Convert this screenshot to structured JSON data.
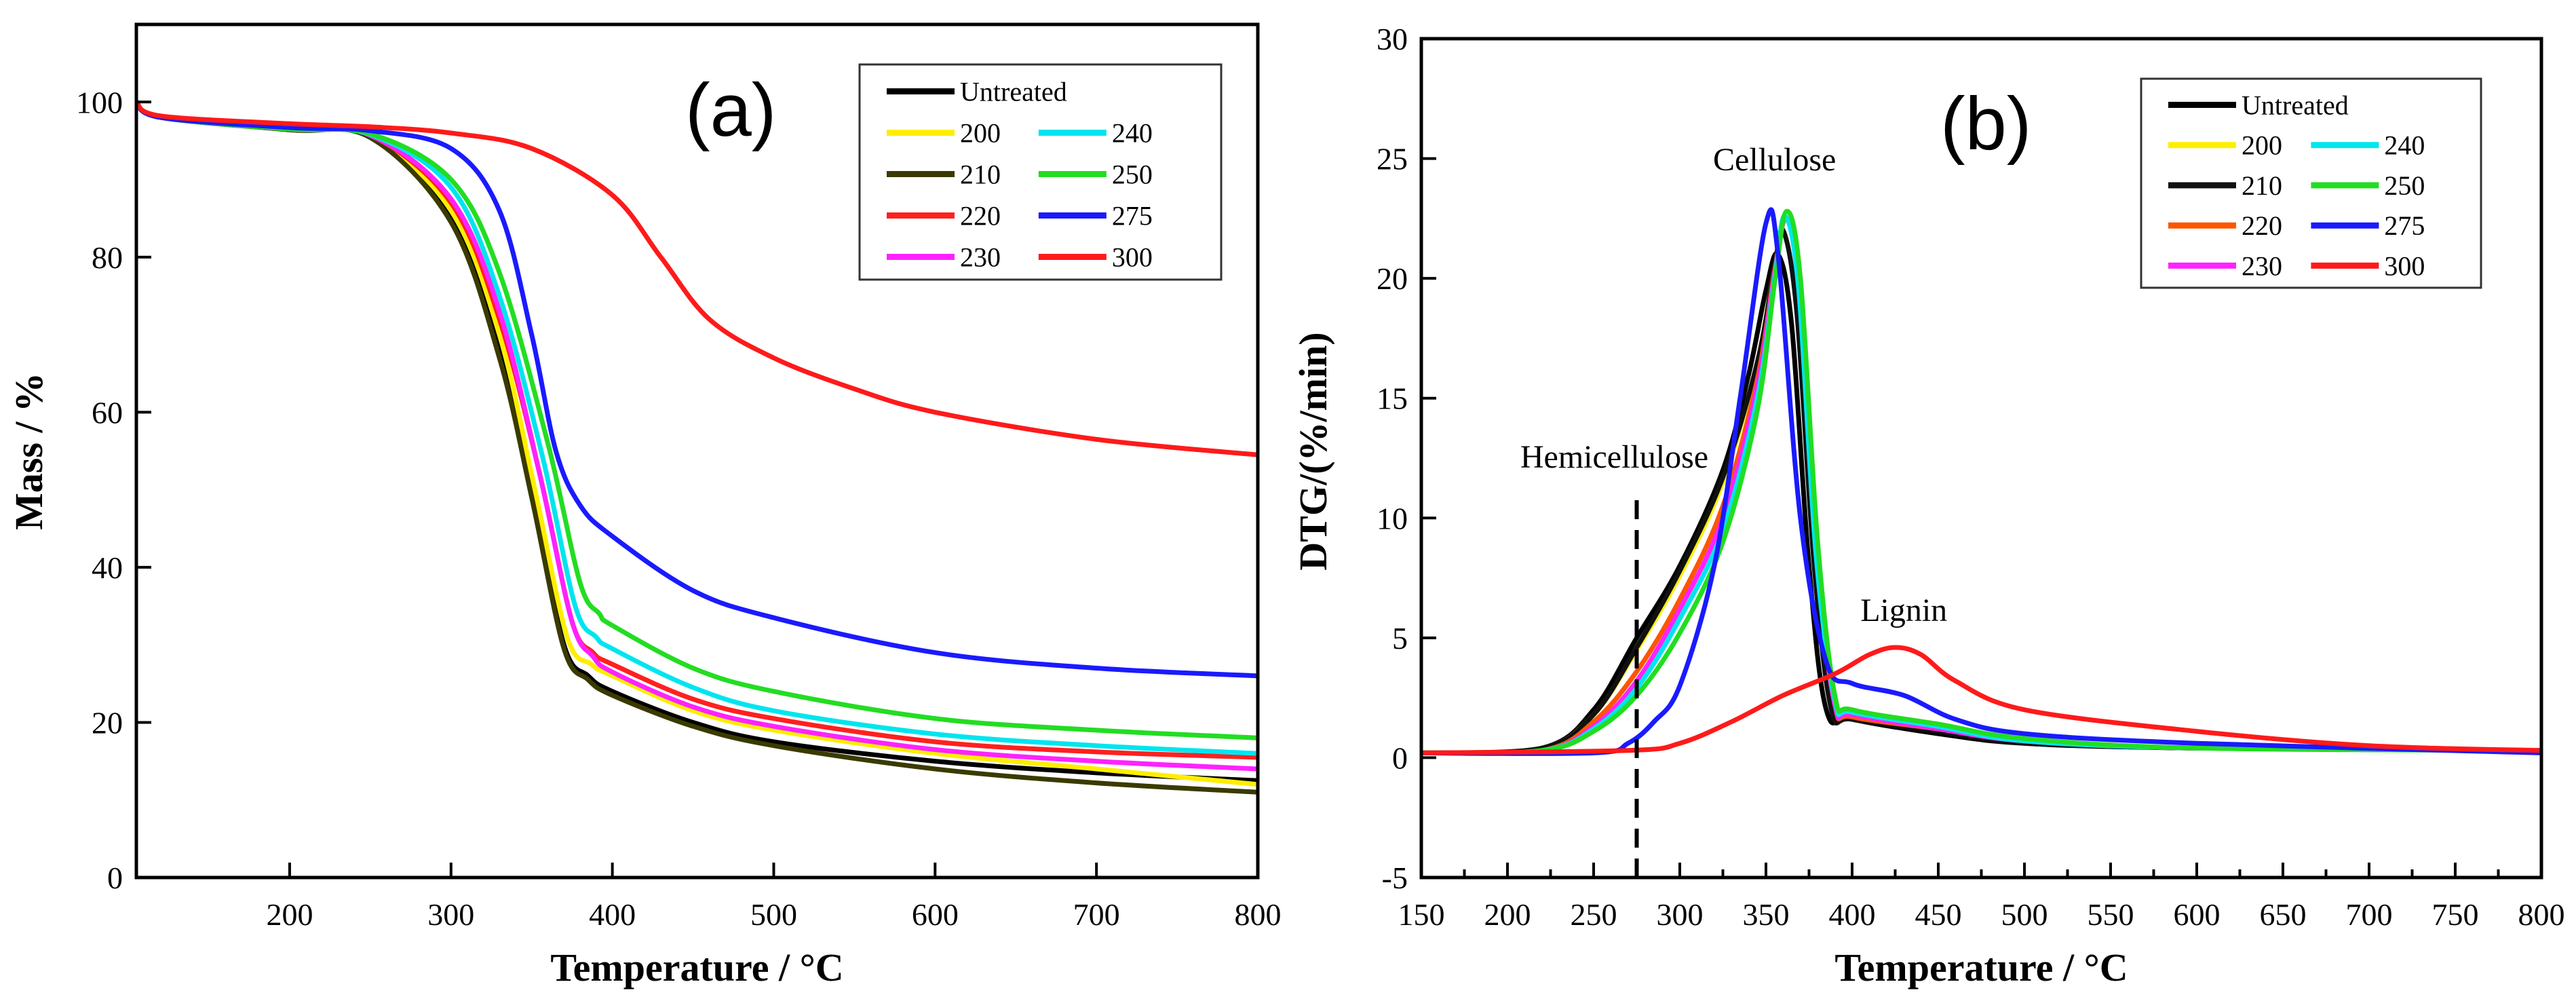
{
  "chart_data": [
    {
      "type": "line",
      "panel_label": "(a)",
      "xlabel": "Temperature / °C",
      "ylabel": "Mass / %",
      "xlim": [
        105,
        800
      ],
      "ylim": [
        0,
        110
      ],
      "xticks": [
        "200",
        "300",
        "400",
        "500",
        "600",
        "700",
        "800"
      ],
      "yticks": [
        "0",
        "20",
        "40",
        "60",
        "80",
        "100"
      ],
      "grid": false,
      "legend_placement": "top-right",
      "series": [
        {
          "name": "Untreated",
          "color": "#000000",
          "x": [
            105,
            120,
            200,
            250,
            300,
            330,
            350,
            370,
            385,
            400,
            450,
            500,
            600,
            700,
            800
          ],
          "y": [
            100,
            98,
            96.5,
            95.5,
            85,
            68,
            50,
            30,
            26,
            24,
            20,
            17.5,
            15,
            13.5,
            12.5
          ]
        },
        {
          "name": "200",
          "color": "#ffee00",
          "x": [
            105,
            120,
            200,
            250,
            300,
            330,
            352,
            372,
            387,
            400,
            450,
            500,
            600,
            700,
            800
          ],
          "y": [
            100,
            98,
            96.5,
            95.6,
            86,
            70,
            50,
            31,
            27.5,
            26,
            21.5,
            19,
            16,
            14,
            12
          ]
        },
        {
          "name": "210",
          "color": "#3a3a00",
          "x": [
            105,
            120,
            200,
            250,
            300,
            330,
            350,
            370,
            385,
            400,
            450,
            500,
            600,
            700,
            800
          ],
          "y": [
            100,
            98,
            96.4,
            95.4,
            84.5,
            67,
            49,
            29.5,
            25.5,
            23.5,
            19.5,
            17,
            14,
            12.2,
            11
          ]
        },
        {
          "name": "220",
          "color": "#ff2020",
          "x": [
            105,
            120,
            200,
            250,
            300,
            330,
            355,
            375,
            388,
            400,
            450,
            500,
            600,
            700,
            800
          ],
          "y": [
            100,
            98,
            96.5,
            95.7,
            87,
            72,
            52,
            33,
            29,
            27.5,
            23,
            20.5,
            17.5,
            16.2,
            15.5
          ]
        },
        {
          "name": "230",
          "color": "#ff22ff",
          "x": [
            105,
            120,
            200,
            250,
            300,
            330,
            355,
            375,
            388,
            400,
            450,
            500,
            600,
            700,
            800
          ],
          "y": [
            100,
            98,
            96.5,
            95.7,
            87.5,
            73,
            52,
            33,
            28.5,
            26.5,
            22,
            19.5,
            16.5,
            15,
            14
          ]
        },
        {
          "name": "240",
          "color": "#00e5ee",
          "x": [
            105,
            120,
            200,
            250,
            300,
            330,
            357,
            377,
            390,
            400,
            450,
            500,
            600,
            700,
            800
          ],
          "y": [
            100,
            98,
            96.5,
            95.8,
            89,
            75,
            54,
            35,
            31,
            29.5,
            24.5,
            21.5,
            18.5,
            17,
            16
          ]
        },
        {
          "name": "250",
          "color": "#22dd22",
          "x": [
            105,
            120,
            200,
            250,
            300,
            330,
            360,
            380,
            392,
            400,
            450,
            500,
            600,
            700,
            800
          ],
          "y": [
            100,
            98,
            96.5,
            95.9,
            90,
            78,
            56,
            38,
            34,
            32.5,
            27,
            24,
            20.5,
            19,
            18
          ]
        },
        {
          "name": "275",
          "color": "#1a1aff",
          "x": [
            105,
            120,
            200,
            250,
            300,
            330,
            350,
            365,
            380,
            400,
            450,
            500,
            600,
            700,
            800
          ],
          "y": [
            100,
            98,
            96.7,
            96.3,
            94,
            86,
            70,
            55,
            48,
            44,
            37,
            33.5,
            29,
            27,
            26
          ]
        },
        {
          "name": "300",
          "color": "#ff1a1a",
          "x": [
            105,
            120,
            200,
            250,
            300,
            350,
            400,
            430,
            460,
            500,
            550,
            600,
            700,
            800
          ],
          "y": [
            100,
            98.2,
            97.2,
            96.8,
            96,
            94,
            88,
            80,
            72,
            67,
            63,
            60,
            56.5,
            54.5
          ]
        }
      ],
      "legend": [
        [
          "Untreated"
        ],
        [
          "200",
          "240"
        ],
        [
          "210",
          "250"
        ],
        [
          "220",
          "275"
        ],
        [
          "230",
          "300"
        ]
      ]
    },
    {
      "type": "line",
      "panel_label": "(b)",
      "xlabel": "Temperature / °C",
      "ylabel": "DTG/(%/min)",
      "xlim": [
        150,
        800
      ],
      "ylim": [
        -5,
        30
      ],
      "xticks": [
        "150",
        "200",
        "250",
        "300",
        "350",
        "400",
        "450",
        "500",
        "550",
        "600",
        "650",
        "700",
        "750",
        "800"
      ],
      "yticks": [
        "-5",
        "0",
        "5",
        "10",
        "15",
        "20",
        "25",
        "30"
      ],
      "grid": false,
      "legend_placement": "top-right",
      "annotations": [
        {
          "text": "Cellulose",
          "x": 355,
          "y": 24.5
        },
        {
          "text": "Hemicellulose",
          "x": 262,
          "y": 12.1
        },
        {
          "text": "Lignin",
          "x": 430,
          "y": 5.7
        }
      ],
      "reference_line": {
        "x": 275,
        "y_from": -5,
        "y_to": 11,
        "style": "dashed"
      },
      "series": [
        {
          "name": "Untreated",
          "color": "#000000",
          "x": [
            150,
            220,
            250,
            275,
            300,
            325,
            340,
            350,
            357,
            365,
            375,
            385,
            400,
            450,
            500,
            600,
            800
          ],
          "y": [
            0.2,
            0.4,
            2,
            5,
            8,
            12,
            16,
            19.5,
            21,
            18,
            8,
            2,
            1.6,
            1,
            0.6,
            0.4,
            0.3
          ]
        },
        {
          "name": "200",
          "color": "#ffee00",
          "x": [
            150,
            220,
            250,
            275,
            300,
            325,
            345,
            355,
            362,
            370,
            380,
            390,
            400,
            450,
            500,
            600,
            800
          ],
          "y": [
            0.2,
            0.4,
            1.8,
            4.5,
            7.6,
            11.5,
            16.5,
            20.5,
            22.5,
            19,
            8,
            2.2,
            1.6,
            1.2,
            0.7,
            0.4,
            0.3
          ]
        },
        {
          "name": "210",
          "color": "#111111",
          "x": [
            150,
            220,
            250,
            275,
            300,
            325,
            345,
            355,
            360,
            368,
            378,
            388,
            400,
            450,
            500,
            600,
            800
          ],
          "y": [
            0.2,
            0.4,
            1.8,
            4.6,
            7.8,
            11.7,
            16.5,
            20.5,
            22,
            18.5,
            8,
            2,
            1.6,
            1.1,
            0.6,
            0.4,
            0.3
          ]
        },
        {
          "name": "220",
          "color": "#ff5500",
          "x": [
            150,
            220,
            250,
            275,
            300,
            325,
            345,
            355,
            362,
            370,
            380,
            390,
            400,
            450,
            500,
            600,
            800
          ],
          "y": [
            0.2,
            0.3,
            1.5,
            3.6,
            6.6,
            10.5,
            15.8,
            20.3,
            22.5,
            19,
            8,
            2.2,
            1.7,
            1.2,
            0.7,
            0.4,
            0.3
          ]
        },
        {
          "name": "230",
          "color": "#ff22ff",
          "x": [
            150,
            220,
            250,
            275,
            300,
            325,
            345,
            355,
            362,
            370,
            380,
            390,
            400,
            450,
            500,
            600,
            800
          ],
          "y": [
            0.2,
            0.3,
            1.3,
            3.2,
            6.2,
            10,
            15.5,
            20.2,
            22.5,
            19,
            8,
            2.2,
            1.8,
            1.2,
            0.7,
            0.4,
            0.3
          ]
        },
        {
          "name": "240",
          "color": "#00e5ee",
          "x": [
            150,
            220,
            250,
            275,
            300,
            325,
            345,
            355,
            361,
            369,
            379,
            390,
            400,
            450,
            500,
            600,
            800
          ],
          "y": [
            0.2,
            0.3,
            1.2,
            2.9,
            5.8,
            9.5,
            15,
            20,
            22.6,
            19.5,
            8.5,
            2.4,
            1.9,
            1.3,
            0.7,
            0.4,
            0.3
          ]
        },
        {
          "name": "250",
          "color": "#22dd22",
          "x": [
            150,
            220,
            250,
            275,
            300,
            325,
            345,
            355,
            362,
            370,
            380,
            390,
            400,
            450,
            500,
            600,
            800
          ],
          "y": [
            0.2,
            0.3,
            1.1,
            2.6,
            5.2,
            9,
            14.5,
            19.8,
            22.8,
            20,
            9,
            2.6,
            2,
            1.4,
            0.8,
            0.4,
            0.3
          ]
        },
        {
          "name": "275",
          "color": "#1a1aff",
          "x": [
            150,
            250,
            270,
            285,
            300,
            320,
            335,
            350,
            357,
            370,
            385,
            400,
            430,
            460,
            500,
            600,
            800
          ],
          "y": [
            0.2,
            0.2,
            0.6,
            1.5,
            3,
            8,
            15,
            22.3,
            21,
            10,
            4,
            3.1,
            2.6,
            1.6,
            1,
            0.6,
            0.2
          ]
        },
        {
          "name": "300",
          "color": "#ff1a1a",
          "x": [
            150,
            270,
            300,
            330,
            360,
            390,
            410,
            425,
            440,
            460,
            500,
            600,
            700,
            800
          ],
          "y": [
            0.2,
            0.3,
            0.6,
            1.5,
            2.6,
            3.5,
            4.3,
            4.6,
            4.3,
            3.2,
            2,
            1.1,
            0.5,
            0.3
          ]
        }
      ],
      "legend": [
        [
          "Untreated"
        ],
        [
          "200",
          "240"
        ],
        [
          "210",
          "250"
        ],
        [
          "220",
          "275"
        ],
        [
          "230",
          "300"
        ]
      ]
    }
  ]
}
